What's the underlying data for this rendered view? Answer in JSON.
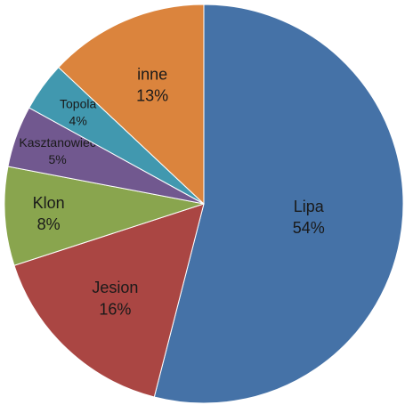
{
  "chart_data": {
    "type": "pie",
    "categories": [
      "Lipa",
      "Jesion",
      "Klon",
      "Kasztanowiec",
      "Topola",
      "inne"
    ],
    "values": [
      54,
      16,
      8,
      5,
      4,
      13
    ],
    "value_labels": [
      "54%",
      "16%",
      "8%",
      "5%",
      "4%",
      "13%"
    ],
    "colors": [
      "#4572a7",
      "#aa4643",
      "#89a54e",
      "#71588f",
      "#4198af",
      "#db843d"
    ]
  }
}
